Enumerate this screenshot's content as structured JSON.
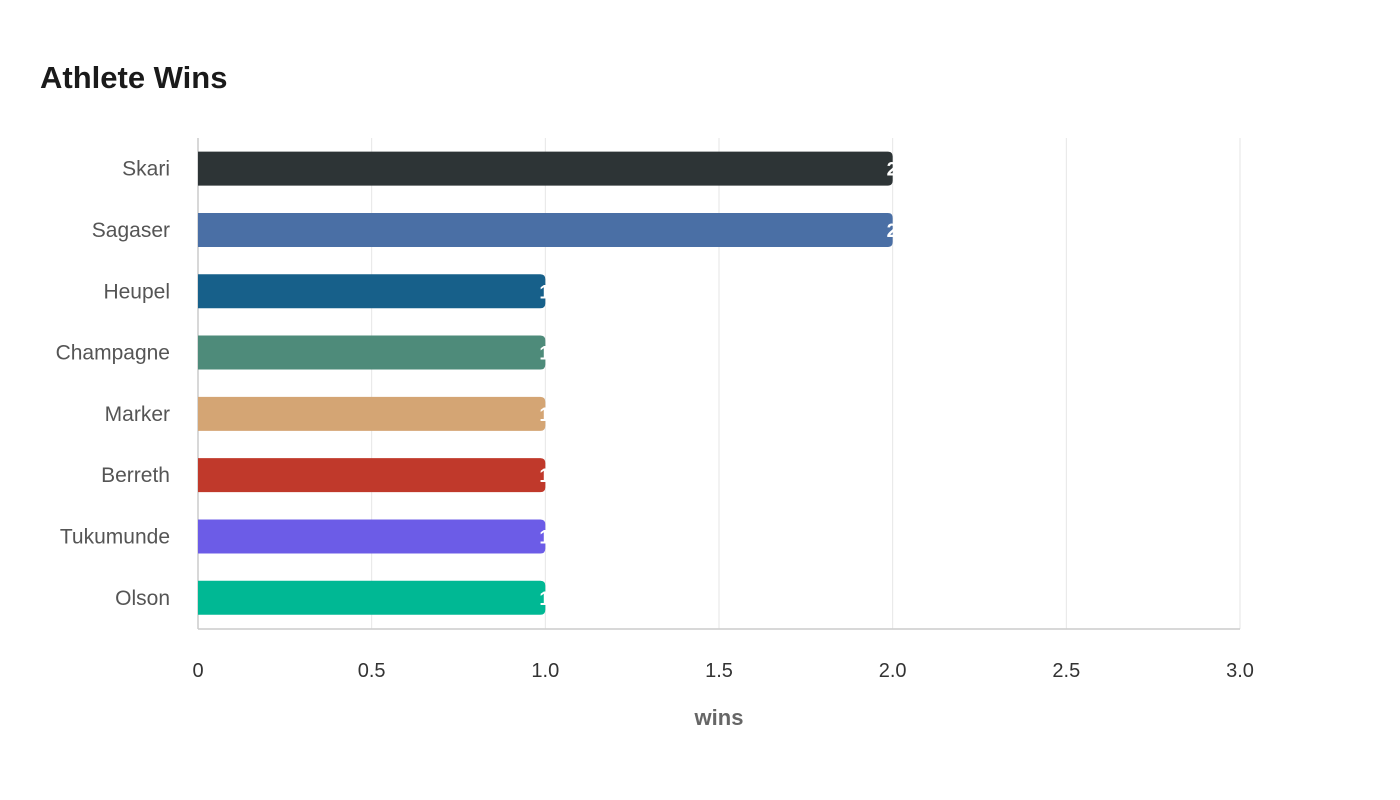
{
  "chart_data": {
    "type": "bar",
    "orientation": "horizontal",
    "title": "Athlete Wins",
    "xlabel": "wins",
    "ylabel": "",
    "categories": [
      "Skari",
      "Sagaser",
      "Heupel",
      "Champagne",
      "Marker",
      "Berreth",
      "Tukumunde",
      "Olson"
    ],
    "values": [
      2,
      2,
      1,
      1,
      1,
      1,
      1,
      1
    ],
    "value_labels": [
      "2",
      "2",
      "1",
      "1",
      "1",
      "1",
      "1",
      "1"
    ],
    "colors": [
      "#2d3436",
      "#4a6fa5",
      "#17608a",
      "#4e8b7a",
      "#d4a574",
      "#c0392b",
      "#6c5ce7",
      "#00b894"
    ],
    "xlim": [
      0,
      3
    ],
    "x_ticks": [
      0,
      0.5,
      1.0,
      1.5,
      2.0,
      2.5,
      3.0
    ],
    "x_tick_labels": [
      "0",
      "0.5",
      "1.0",
      "1.5",
      "2.0",
      "2.5",
      "3.0"
    ],
    "grid": true,
    "legend": "none"
  }
}
